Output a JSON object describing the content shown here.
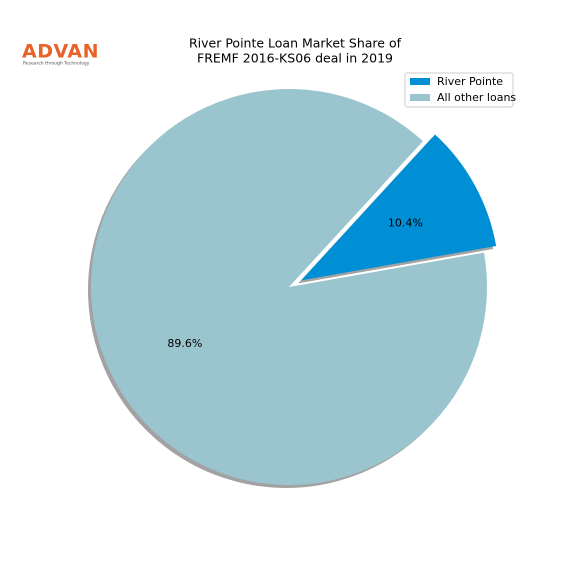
{
  "logo": {
    "name": "ADVAN",
    "tagline": "Research through Technology"
  },
  "chart_data": {
    "type": "pie",
    "title": [
      "River Pointe Loan Market Share of",
      "FREMF 2016-KS06 deal in 2019"
    ],
    "categories": [
      "River Pointe",
      "All other loans"
    ],
    "values": [
      10.4,
      89.6
    ],
    "value_labels": [
      "10.4%",
      "89.6%"
    ],
    "colors": [
      "#008fd5",
      "#9ac5ce"
    ],
    "legend": "upper right",
    "shadow": true
  }
}
